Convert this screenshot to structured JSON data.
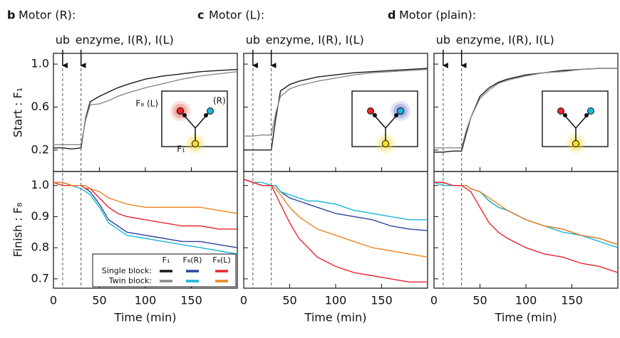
{
  "chart_data": [
    {
      "letter": "b",
      "title": "Motor (R):",
      "events": [
        {
          "x": 10,
          "label": "ub"
        },
        {
          "x": 30,
          "label": "enzyme, I(R), I(L)"
        }
      ],
      "inset": {
        "labels": [
          "F₈ (L)",
          "(R)",
          "F₁"
        ],
        "left_glow": "#e8503c",
        "bottom_glow": "#f5d83a"
      },
      "charts": [
        {
          "type": "line",
          "ylabel": "Start : F₁",
          "xlim": [
            0,
            200
          ],
          "xticks": [
            0,
            50,
            100,
            150
          ],
          "ylim": [
            0,
            1.1
          ],
          "yticks": [
            0.2,
            0.6,
            {
              "value": 1,
              "label": "1.0"
            }
          ],
          "x": [
            0,
            10,
            20,
            30,
            35,
            40,
            50,
            60,
            70,
            80,
            100,
            120,
            140,
            160,
            180,
            200
          ],
          "series": [
            {
              "color": "#1a1a1a",
              "values": [
                0.22,
                0.22,
                0.21,
                0.22,
                0.5,
                0.65,
                0.7,
                0.74,
                0.78,
                0.81,
                0.86,
                0.89,
                0.91,
                0.93,
                0.94,
                0.95
              ]
            },
            {
              "color": "#8a8a8a",
              "values": [
                0.25,
                0.25,
                0.25,
                0.25,
                0.48,
                0.62,
                0.63,
                0.66,
                0.7,
                0.73,
                0.78,
                0.82,
                0.86,
                0.89,
                0.91,
                0.93
              ]
            }
          ]
        },
        {
          "type": "line",
          "ylabel": "Finish : F₈",
          "xlabel": "Time (min)",
          "xlim": [
            0,
            200
          ],
          "xticks": [
            0,
            50,
            100,
            150
          ],
          "ylim": [
            0.67,
            1.045
          ],
          "yticks": [
            0.7,
            0.8,
            0.9,
            {
              "value": 1,
              "label": "1.0"
            }
          ],
          "x": [
            0,
            10,
            20,
            30,
            35,
            40,
            50,
            60,
            70,
            80,
            100,
            120,
            140,
            160,
            180,
            200
          ],
          "series": [
            {
              "color": "#2f449c",
              "values": [
                1.01,
                1.01,
                1.0,
                1.0,
                0.99,
                0.98,
                0.94,
                0.89,
                0.87,
                0.85,
                0.84,
                0.83,
                0.82,
                0.82,
                0.81,
                0.8
              ]
            },
            {
              "color": "#1cb6d6",
              "values": [
                1.01,
                1.01,
                1.0,
                0.99,
                0.98,
                0.97,
                0.93,
                0.88,
                0.86,
                0.84,
                0.83,
                0.82,
                0.81,
                0.8,
                0.79,
                0.78
              ]
            },
            {
              "color": "#e8262e",
              "values": [
                1.01,
                1.0,
                1.0,
                1.0,
                0.99,
                0.99,
                0.96,
                0.93,
                0.91,
                0.9,
                0.89,
                0.88,
                0.87,
                0.87,
                0.86,
                0.86
              ]
            },
            {
              "color": "#f08424",
              "values": [
                1.01,
                1.01,
                1.0,
                1.0,
                1.0,
                0.99,
                0.98,
                0.96,
                0.95,
                0.94,
                0.93,
                0.93,
                0.93,
                0.93,
                0.92,
                0.91
              ]
            }
          ],
          "legend": {
            "columns": [
              "F₁",
              "F₈(R)",
              "F₈(L)"
            ],
            "rows": [
              {
                "label": "Single block:",
                "colors": [
                  "#1a1a1a",
                  "#2f449c",
                  "#e8262e"
                ]
              },
              {
                "label": "Twin block:",
                "colors": [
                  "#8a8a8a",
                  "#1cb6d6",
                  "#f08424"
                ]
              }
            ]
          }
        }
      ]
    },
    {
      "letter": "c",
      "title": "Motor (L):",
      "events": [
        {
          "x": 10,
          "label": "ub"
        },
        {
          "x": 30,
          "label": "enzyme, I(R), I(L)"
        }
      ],
      "inset": {
        "right_glow": "#5066c8",
        "bottom_glow": "#f5d83a"
      },
      "charts": [
        {
          "type": "line",
          "ytick_labels": false,
          "xlim": [
            0,
            200
          ],
          "xticks": [
            0,
            50,
            100,
            150
          ],
          "ylim": [
            0,
            1.1
          ],
          "yticks": [
            0.2,
            0.6,
            1
          ],
          "x": [
            0,
            10,
            20,
            30,
            35,
            40,
            50,
            60,
            70,
            80,
            100,
            120,
            140,
            160,
            180,
            200
          ],
          "series": [
            {
              "color": "#1a1a1a",
              "values": [
                0.2,
                0.2,
                0.2,
                0.2,
                0.5,
                0.75,
                0.81,
                0.84,
                0.86,
                0.88,
                0.9,
                0.92,
                0.93,
                0.94,
                0.95,
                0.96
              ]
            },
            {
              "color": "#8a8a8a",
              "values": [
                0.33,
                0.33,
                0.34,
                0.34,
                0.55,
                0.7,
                0.77,
                0.8,
                0.82,
                0.84,
                0.87,
                0.9,
                0.92,
                0.93,
                0.94,
                0.95
              ]
            }
          ]
        },
        {
          "type": "line",
          "ytick_labels": false,
          "xlabel": "Time (min)",
          "xlim": [
            0,
            200
          ],
          "xticks": [
            0,
            50,
            100,
            150
          ],
          "ylim": [
            0.67,
            1.045
          ],
          "yticks": [
            0.7,
            0.8,
            0.9,
            1
          ],
          "x": [
            0,
            10,
            20,
            30,
            35,
            40,
            50,
            60,
            70,
            80,
            100,
            120,
            140,
            160,
            180,
            200
          ],
          "series": [
            {
              "color": "#2f449c",
              "values": [
                1.02,
                1.01,
                1.0,
                1.0,
                1.0,
                0.98,
                0.96,
                0.95,
                0.94,
                0.93,
                0.91,
                0.9,
                0.89,
                0.87,
                0.86,
                0.855
              ]
            },
            {
              "color": "#1cb6d6",
              "values": [
                1.02,
                1.01,
                1.01,
                1.0,
                1.0,
                0.98,
                0.97,
                0.96,
                0.95,
                0.95,
                0.94,
                0.92,
                0.91,
                0.9,
                0.89,
                0.89
              ]
            },
            {
              "color": "#f08424",
              "values": [
                1.02,
                1.01,
                1.0,
                1.0,
                0.99,
                0.97,
                0.93,
                0.9,
                0.88,
                0.86,
                0.84,
                0.82,
                0.8,
                0.79,
                0.78,
                0.77
              ]
            },
            {
              "color": "#e8262e",
              "values": [
                1.02,
                1.01,
                1.0,
                1.0,
                0.97,
                0.94,
                0.88,
                0.83,
                0.8,
                0.77,
                0.74,
                0.72,
                0.71,
                0.7,
                0.69,
                0.69
              ]
            }
          ]
        }
      ]
    },
    {
      "letter": "d",
      "title": "Motor (plain):",
      "events": [
        {
          "x": 10,
          "label": "ub"
        },
        {
          "x": 30,
          "label": "enzyme, I(R), I(L)"
        }
      ],
      "inset": {
        "bottom_glow": "#f5d83a"
      },
      "charts": [
        {
          "type": "line",
          "ytick_labels": false,
          "xlim": [
            0,
            200
          ],
          "xticks": [
            0,
            50,
            100,
            150
          ],
          "ylim": [
            0,
            1.1
          ],
          "yticks": [
            0.2,
            0.6,
            1
          ],
          "x": [
            0,
            10,
            20,
            30,
            35,
            40,
            50,
            60,
            70,
            80,
            100,
            120,
            140,
            160,
            180,
            200
          ],
          "series": [
            {
              "color": "#1a1a1a",
              "values": [
                0.18,
                0.18,
                0.19,
                0.19,
                0.35,
                0.5,
                0.7,
                0.78,
                0.83,
                0.86,
                0.9,
                0.92,
                0.94,
                0.95,
                0.96,
                0.96
              ]
            },
            {
              "color": "#8a8a8a",
              "values": [
                0.22,
                0.22,
                0.22,
                0.22,
                0.38,
                0.5,
                0.68,
                0.76,
                0.82,
                0.85,
                0.89,
                0.92,
                0.93,
                0.95,
                0.96,
                0.96
              ]
            }
          ]
        },
        {
          "type": "line",
          "ytick_labels": false,
          "xlabel": "Time (min)",
          "xlim": [
            0,
            200
          ],
          "xticks": [
            0,
            50,
            100,
            150
          ],
          "ylim": [
            0.67,
            1.045
          ],
          "yticks": [
            0.7,
            0.8,
            0.9,
            1
          ],
          "x": [
            0,
            10,
            20,
            30,
            35,
            40,
            50,
            60,
            70,
            80,
            100,
            120,
            140,
            160,
            180,
            200
          ],
          "series": [
            {
              "color": "#2f449c",
              "values": [
                1.01,
                1.01,
                1.0,
                1.0,
                1.0,
                0.99,
                0.98,
                0.95,
                0.93,
                0.92,
                0.89,
                0.87,
                0.86,
                0.84,
                0.83,
                0.81
              ]
            },
            {
              "color": "#1cb6d6",
              "values": [
                1.01,
                1.0,
                1.0,
                1.0,
                1.0,
                0.99,
                0.98,
                0.95,
                0.93,
                0.92,
                0.89,
                0.87,
                0.85,
                0.84,
                0.82,
                0.8
              ]
            },
            {
              "color": "#f08424",
              "values": [
                1.01,
                1.01,
                1.0,
                1.0,
                1.0,
                0.99,
                0.98,
                0.96,
                0.94,
                0.92,
                0.89,
                0.87,
                0.86,
                0.84,
                0.83,
                0.81
              ]
            },
            {
              "color": "#e8262e",
              "values": [
                1.01,
                1.01,
                1.0,
                1.0,
                0.99,
                0.98,
                0.93,
                0.88,
                0.85,
                0.83,
                0.8,
                0.78,
                0.77,
                0.75,
                0.74,
                0.72
              ]
            }
          ]
        }
      ]
    }
  ]
}
